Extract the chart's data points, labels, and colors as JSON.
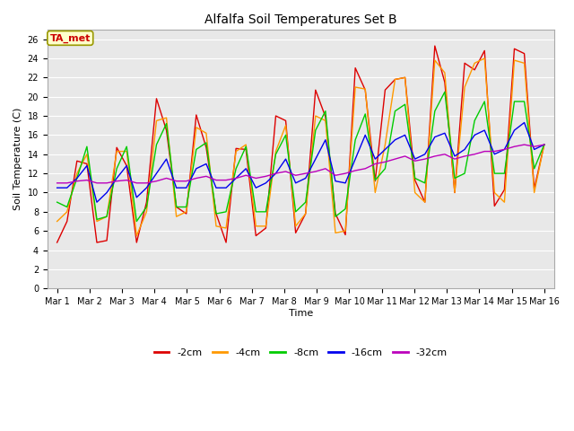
{
  "title": "Alfalfa Soil Temperatures Set B",
  "xlabel": "Time",
  "ylabel": "Soil Temperature (C)",
  "ylim": [
    0,
    27
  ],
  "yticks": [
    0,
    2,
    4,
    6,
    8,
    10,
    12,
    14,
    16,
    18,
    20,
    22,
    24,
    26
  ],
  "xtick_labels": [
    "Mar 1",
    "Mar 2",
    "Mar 3",
    "Mar 4",
    "Mar 5",
    "Mar 6",
    "Mar 7",
    "Mar 8",
    "Mar 9",
    "Mar 10",
    "Mar 11",
    "Mar 12",
    "Mar 13",
    "Mar 14",
    "Mar 15",
    "Mar 16"
  ],
  "legend_labels": [
    "-2cm",
    "-4cm",
    "-8cm",
    "-16cm",
    "-32cm"
  ],
  "line_colors": [
    "#dd0000",
    "#ff9900",
    "#00cc00",
    "#0000ee",
    "#bb00bb"
  ],
  "annotation_text": "TA_met",
  "annotation_color": "#cc0000",
  "annotation_bg": "#ffffcc",
  "annotation_edge": "#999900",
  "fig_bg": "#ffffff",
  "plot_bg": "#e8e8e8",
  "grid_color": "#ffffff",
  "series": {
    "d2cm": [
      4.8,
      7.0,
      13.3,
      13.0,
      4.8,
      5.0,
      14.7,
      12.8,
      4.8,
      9.0,
      19.8,
      16.5,
      8.5,
      7.8,
      18.1,
      14.7,
      7.8,
      4.8,
      14.6,
      14.5,
      5.5,
      6.3,
      18.0,
      17.5,
      5.8,
      7.8,
      20.7,
      17.9,
      7.8,
      5.6,
      23.0,
      20.7,
      11.2,
      20.7,
      21.8,
      22.0,
      11.3,
      9.0,
      25.3,
      21.5,
      10.0,
      23.5,
      22.8,
      24.8,
      8.6,
      10.3,
      25.0,
      24.5,
      10.4,
      15.0
    ],
    "d4cm": [
      7.0,
      8.0,
      12.0,
      14.0,
      7.0,
      7.5,
      14.3,
      14.3,
      5.5,
      8.0,
      17.5,
      17.8,
      7.5,
      8.0,
      16.8,
      16.2,
      6.5,
      6.3,
      14.3,
      15.0,
      6.5,
      6.5,
      14.3,
      17.0,
      6.5,
      7.8,
      18.0,
      17.5,
      5.8,
      6.0,
      21.0,
      20.8,
      10.0,
      15.0,
      21.8,
      22.0,
      10.0,
      9.0,
      23.8,
      22.5,
      10.0,
      21.0,
      23.5,
      24.0,
      10.0,
      9.0,
      23.8,
      23.5,
      10.0,
      15.0
    ],
    "d8cm": [
      9.0,
      8.5,
      11.5,
      14.8,
      7.2,
      7.5,
      12.5,
      14.8,
      7.0,
      8.5,
      15.0,
      17.2,
      8.5,
      8.5,
      14.5,
      15.2,
      7.8,
      8.0,
      12.5,
      14.8,
      8.0,
      8.0,
      14.0,
      16.0,
      8.0,
      9.0,
      16.5,
      18.5,
      7.5,
      8.3,
      15.5,
      18.2,
      11.3,
      12.5,
      18.5,
      19.2,
      11.5,
      11.0,
      18.5,
      20.5,
      11.5,
      12.0,
      17.5,
      19.5,
      12.0,
      12.0,
      19.5,
      19.5,
      12.5,
      15.0
    ],
    "d16cm": [
      10.5,
      10.5,
      11.5,
      12.8,
      9.0,
      10.0,
      11.5,
      12.8,
      9.5,
      10.5,
      12.0,
      13.5,
      10.5,
      10.5,
      12.5,
      13.0,
      10.5,
      10.5,
      11.5,
      12.5,
      10.5,
      11.0,
      12.0,
      13.5,
      11.0,
      11.5,
      13.5,
      15.5,
      11.2,
      11.0,
      13.5,
      16.0,
      13.5,
      14.5,
      15.5,
      16.0,
      13.5,
      14.0,
      15.8,
      16.2,
      13.8,
      14.5,
      16.0,
      16.5,
      14.0,
      14.5,
      16.5,
      17.3,
      14.5,
      15.0
    ],
    "d32cm": [
      11.0,
      11.0,
      11.2,
      11.3,
      11.0,
      11.0,
      11.2,
      11.3,
      11.0,
      11.0,
      11.2,
      11.5,
      11.2,
      11.2,
      11.5,
      11.7,
      11.3,
      11.3,
      11.5,
      11.8,
      11.5,
      11.7,
      12.0,
      12.2,
      11.8,
      12.0,
      12.2,
      12.5,
      11.8,
      12.0,
      12.3,
      12.5,
      13.0,
      13.2,
      13.5,
      13.8,
      13.3,
      13.5,
      13.8,
      14.0,
      13.5,
      13.8,
      14.0,
      14.3,
      14.3,
      14.5,
      14.8,
      15.0,
      14.8,
      15.0
    ]
  }
}
